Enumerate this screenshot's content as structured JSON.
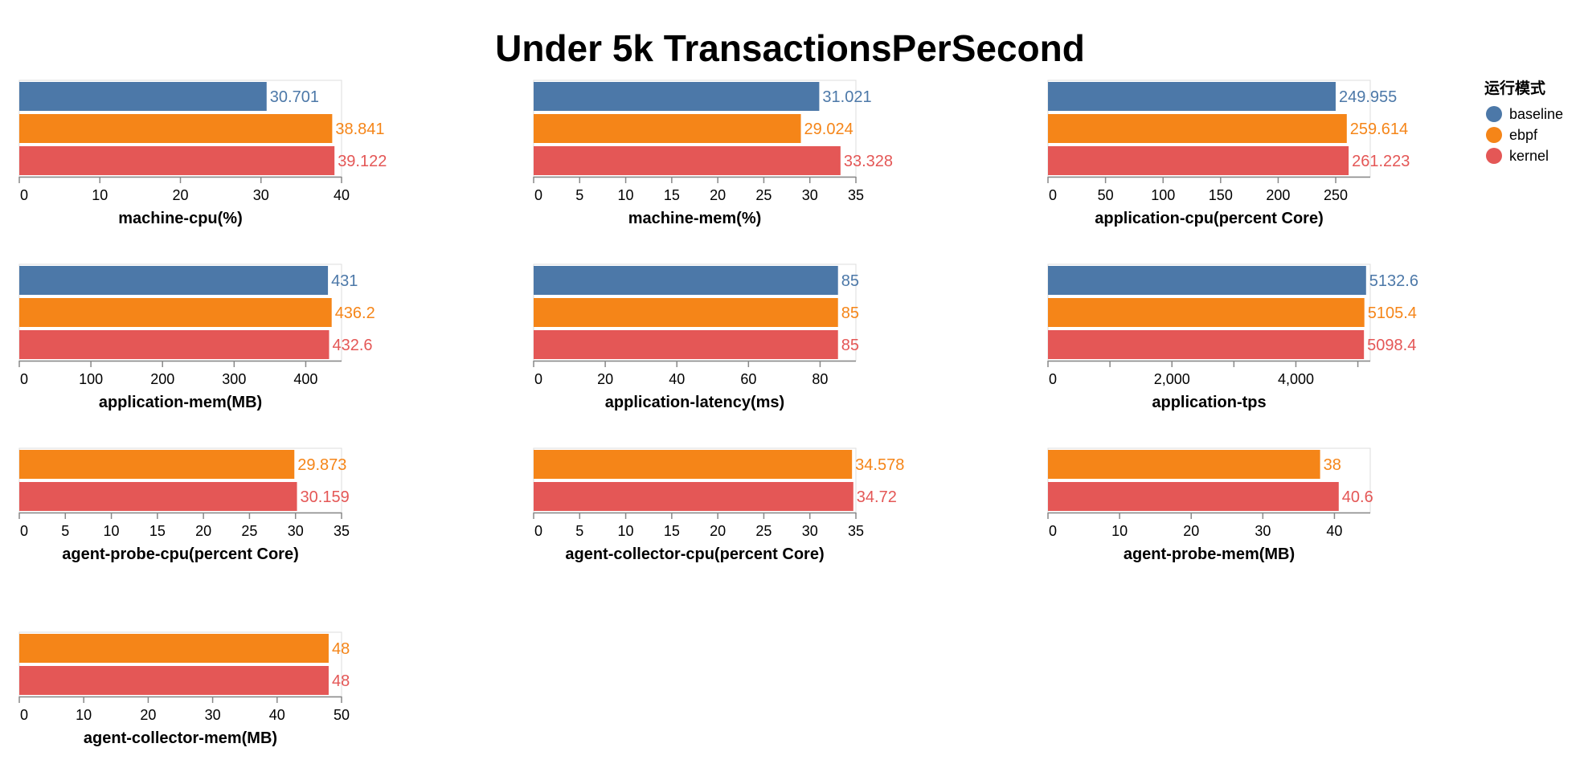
{
  "title": "Under 5k TransactionsPerSecond",
  "legend": {
    "title": "运行模式",
    "items": [
      {
        "name": "baseline",
        "color": "#4c78a8"
      },
      {
        "name": "ebpf",
        "color": "#f58518"
      },
      {
        "name": "kernel",
        "color": "#e45756"
      }
    ]
  },
  "chart_data": [
    {
      "type": "bar",
      "orientation": "horizontal",
      "xlabel": "machine-cpu(%)",
      "bars": [
        {
          "series": "baseline",
          "value": 30.701,
          "label": "30.701"
        },
        {
          "series": "ebpf",
          "value": 38.841,
          "label": "38.841"
        },
        {
          "series": "kernel",
          "value": 39.122,
          "label": "39.122"
        }
      ],
      "ticks": [
        0,
        10,
        20,
        30,
        40
      ],
      "tick_labels": [
        "0",
        "10",
        "20",
        "30",
        "40"
      ],
      "xlim": [
        0,
        40
      ]
    },
    {
      "type": "bar",
      "orientation": "horizontal",
      "xlabel": "machine-mem(%)",
      "bars": [
        {
          "series": "baseline",
          "value": 31.021,
          "label": "31.021"
        },
        {
          "series": "ebpf",
          "value": 29.024,
          "label": "29.024"
        },
        {
          "series": "kernel",
          "value": 33.328,
          "label": "33.328"
        }
      ],
      "ticks": [
        0,
        5,
        10,
        15,
        20,
        25,
        30,
        35
      ],
      "tick_labels": [
        "0",
        "5",
        "10",
        "15",
        "20",
        "25",
        "30",
        "35"
      ],
      "xlim": [
        0,
        35
      ]
    },
    {
      "type": "bar",
      "orientation": "horizontal",
      "xlabel": "application-cpu(percent Core)",
      "bars": [
        {
          "series": "baseline",
          "value": 249.955,
          "label": "249.955"
        },
        {
          "series": "ebpf",
          "value": 259.614,
          "label": "259.614"
        },
        {
          "series": "kernel",
          "value": 261.223,
          "label": "261.223"
        }
      ],
      "ticks": [
        0,
        50,
        100,
        150,
        200,
        250
      ],
      "tick_labels": [
        "0",
        "50",
        "100",
        "150",
        "200",
        "250"
      ],
      "xlim": [
        0,
        280
      ]
    },
    {
      "type": "bar",
      "orientation": "horizontal",
      "xlabel": "application-mem(MB)",
      "bars": [
        {
          "series": "baseline",
          "value": 431,
          "label": "431"
        },
        {
          "series": "ebpf",
          "value": 436.2,
          "label": "436.2"
        },
        {
          "series": "kernel",
          "value": 432.6,
          "label": "432.6"
        }
      ],
      "ticks": [
        0,
        100,
        200,
        300,
        400
      ],
      "tick_labels": [
        "0",
        "100",
        "200",
        "300",
        "400"
      ],
      "xlim": [
        0,
        450
      ]
    },
    {
      "type": "bar",
      "orientation": "horizontal",
      "xlabel": "application-latency(ms)",
      "bars": [
        {
          "series": "baseline",
          "value": 85,
          "label": "85"
        },
        {
          "series": "ebpf",
          "value": 85,
          "label": "85"
        },
        {
          "series": "kernel",
          "value": 85,
          "label": "85"
        }
      ],
      "ticks": [
        0,
        20,
        40,
        60,
        80
      ],
      "tick_labels": [
        "0",
        "20",
        "40",
        "60",
        "80"
      ],
      "xlim": [
        0,
        90
      ]
    },
    {
      "type": "bar",
      "orientation": "horizontal",
      "xlabel": "application-tps",
      "bars": [
        {
          "series": "baseline",
          "value": 5132.6,
          "label": "5132.6"
        },
        {
          "series": "ebpf",
          "value": 5105.4,
          "label": "5105.4"
        },
        {
          "series": "kernel",
          "value": 5098.4,
          "label": "5098.4"
        }
      ],
      "ticks": [
        0,
        1000,
        2000,
        3000,
        4000,
        5000
      ],
      "tick_labels": [
        "0",
        "",
        "2,000",
        "",
        "4,000",
        ""
      ],
      "xlim": [
        0,
        5200
      ]
    },
    {
      "type": "bar",
      "orientation": "horizontal",
      "xlabel": "agent-probe-cpu(percent Core)",
      "bars": [
        {
          "series": "ebpf",
          "value": 29.873,
          "label": "29.873"
        },
        {
          "series": "kernel",
          "value": 30.159,
          "label": "30.159"
        }
      ],
      "ticks": [
        0,
        5,
        10,
        15,
        20,
        25,
        30,
        35
      ],
      "tick_labels": [
        "0",
        "5",
        "10",
        "15",
        "20",
        "25",
        "30",
        "35"
      ],
      "xlim": [
        0,
        35
      ]
    },
    {
      "type": "bar",
      "orientation": "horizontal",
      "xlabel": "agent-collector-cpu(percent Core)",
      "bars": [
        {
          "series": "ebpf",
          "value": 34.578,
          "label": "34.578"
        },
        {
          "series": "kernel",
          "value": 34.72,
          "label": "34.72"
        }
      ],
      "ticks": [
        0,
        5,
        10,
        15,
        20,
        25,
        30,
        35
      ],
      "tick_labels": [
        "0",
        "5",
        "10",
        "15",
        "20",
        "25",
        "30",
        "35"
      ],
      "xlim": [
        0,
        35
      ]
    },
    {
      "type": "bar",
      "orientation": "horizontal",
      "xlabel": "agent-probe-mem(MB)",
      "bars": [
        {
          "series": "ebpf",
          "value": 38,
          "label": "38"
        },
        {
          "series": "kernel",
          "value": 40.6,
          "label": "40.6"
        }
      ],
      "ticks": [
        0,
        10,
        20,
        30,
        40
      ],
      "tick_labels": [
        "0",
        "10",
        "20",
        "30",
        "40"
      ],
      "xlim": [
        0,
        45
      ]
    },
    {
      "type": "bar",
      "orientation": "horizontal",
      "xlabel": "agent-collector-mem(MB)",
      "bars": [
        {
          "series": "ebpf",
          "value": 48,
          "label": "48"
        },
        {
          "series": "kernel",
          "value": 48,
          "label": "48"
        }
      ],
      "ticks": [
        0,
        10,
        20,
        30,
        40,
        50
      ],
      "tick_labels": [
        "0",
        "10",
        "20",
        "30",
        "40",
        "50"
      ],
      "xlim": [
        0,
        50
      ]
    }
  ]
}
